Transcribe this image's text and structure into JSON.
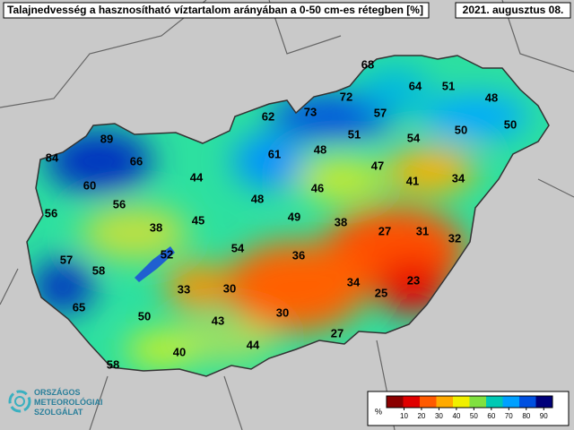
{
  "header": {
    "title": "Talajnedvesség a hasznosítható víztartalom arányában a 0-50 cm-es rétegben [%]",
    "date": "2021. augusztus 08."
  },
  "stations": [
    68,
    64,
    51,
    48,
    62,
    73,
    72,
    57,
    50,
    50,
    89,
    84,
    66,
    61,
    48,
    51,
    54,
    47,
    41,
    34,
    60,
    44,
    56,
    56,
    48,
    46,
    49,
    38,
    45,
    38,
    27,
    31,
    32,
    52,
    54,
    36,
    57,
    58,
    33,
    30,
    34,
    25,
    23,
    65,
    50,
    43,
    30,
    27,
    44,
    40,
    58
  ],
  "legend": {
    "unit": "%",
    "range": [
      0,
      95
    ],
    "ticks": [
      10,
      20,
      30,
      40,
      50,
      60,
      70,
      80,
      90
    ],
    "colors": [
      "#8b0000",
      "#e00000",
      "#ff5a00",
      "#ffaa00",
      "#f0f000",
      "#80e040",
      "#00c8b4",
      "#00a0ff",
      "#0050e0",
      "#00007a"
    ]
  },
  "logo": [
    "ORSZÁGOS",
    "METEOROLÓGIAI",
    "SZOLGÁLAT"
  ]
}
